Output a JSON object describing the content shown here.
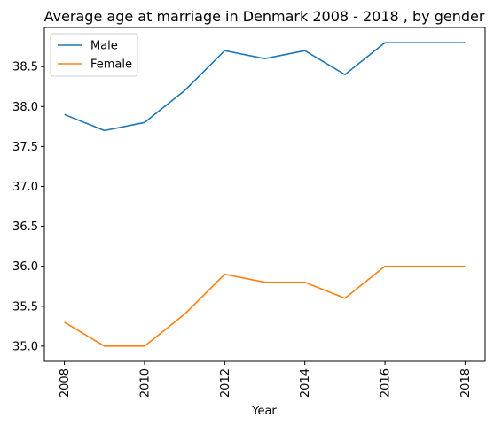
{
  "chart_data": {
    "type": "line",
    "title": "Average age at marriage in Denmark 2008 - 2018 , by gender",
    "xlabel": "Year",
    "ylabel": "",
    "x": [
      2008,
      2009,
      2010,
      2011,
      2012,
      2013,
      2014,
      2015,
      2016,
      2017,
      2018
    ],
    "xticks": [
      "2008",
      "2010",
      "2012",
      "2014",
      "2016",
      "2018"
    ],
    "yticks": [
      "35.0",
      "35.5",
      "36.0",
      "36.5",
      "37.0",
      "37.5",
      "38.0",
      "38.5"
    ],
    "ylim": [
      34.81,
      38.99
    ],
    "xlim": [
      2007.5,
      2018.5
    ],
    "grid": false,
    "legend_position": "top-left",
    "series": [
      {
        "name": "Male",
        "color": "#1f77b4",
        "values": [
          37.9,
          37.7,
          37.8,
          38.2,
          38.7,
          38.6,
          38.7,
          38.4,
          38.8,
          38.8,
          38.8
        ]
      },
      {
        "name": "Female",
        "color": "#ff7f0e",
        "values": [
          35.3,
          35.0,
          35.0,
          35.4,
          35.9,
          35.8,
          35.8,
          35.6,
          36.0,
          36.0,
          36.0
        ]
      }
    ]
  }
}
